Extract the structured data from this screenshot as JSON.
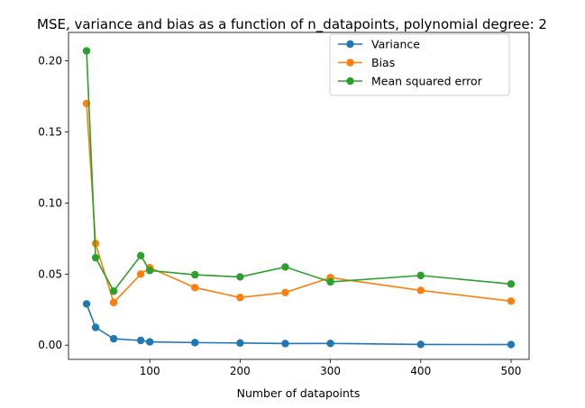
{
  "chart_data": {
    "type": "line",
    "title": "MSE, variance and bias as a function of n_datapoints, polynomial degree: 2",
    "xlabel": "Number of datapoints",
    "ylabel": "",
    "xlim": [
      10,
      520
    ],
    "ylim": [
      -0.01,
      0.22
    ],
    "xticks": [
      100,
      200,
      300,
      400,
      500
    ],
    "yticks": [
      0.0,
      0.05,
      0.1,
      0.15,
      0.2
    ],
    "ytick_labels": [
      "0.00",
      "0.05",
      "0.10",
      "0.15",
      "0.20"
    ],
    "grid": false,
    "legend_position": "top-right",
    "x": [
      30,
      40,
      60,
      90,
      100,
      150,
      200,
      250,
      300,
      400,
      500
    ],
    "series": [
      {
        "name": "Variance",
        "color": "#1f77b4",
        "values": [
          0.029,
          0.0125,
          0.0045,
          0.0033,
          0.0023,
          0.0018,
          0.0015,
          0.0011,
          0.0012,
          0.0005,
          0.0004
        ]
      },
      {
        "name": "Bias",
        "color": "#ff7f0e",
        "values": [
          0.17,
          0.0715,
          0.03,
          0.05,
          0.0545,
          0.0405,
          0.0335,
          0.037,
          0.0475,
          0.0385,
          0.031
        ]
      },
      {
        "name": "Mean squared error",
        "color": "#2ca02c",
        "values": [
          0.207,
          0.0615,
          0.038,
          0.063,
          0.0525,
          0.0495,
          0.048,
          0.055,
          0.0445,
          0.049,
          0.043
        ]
      }
    ]
  }
}
